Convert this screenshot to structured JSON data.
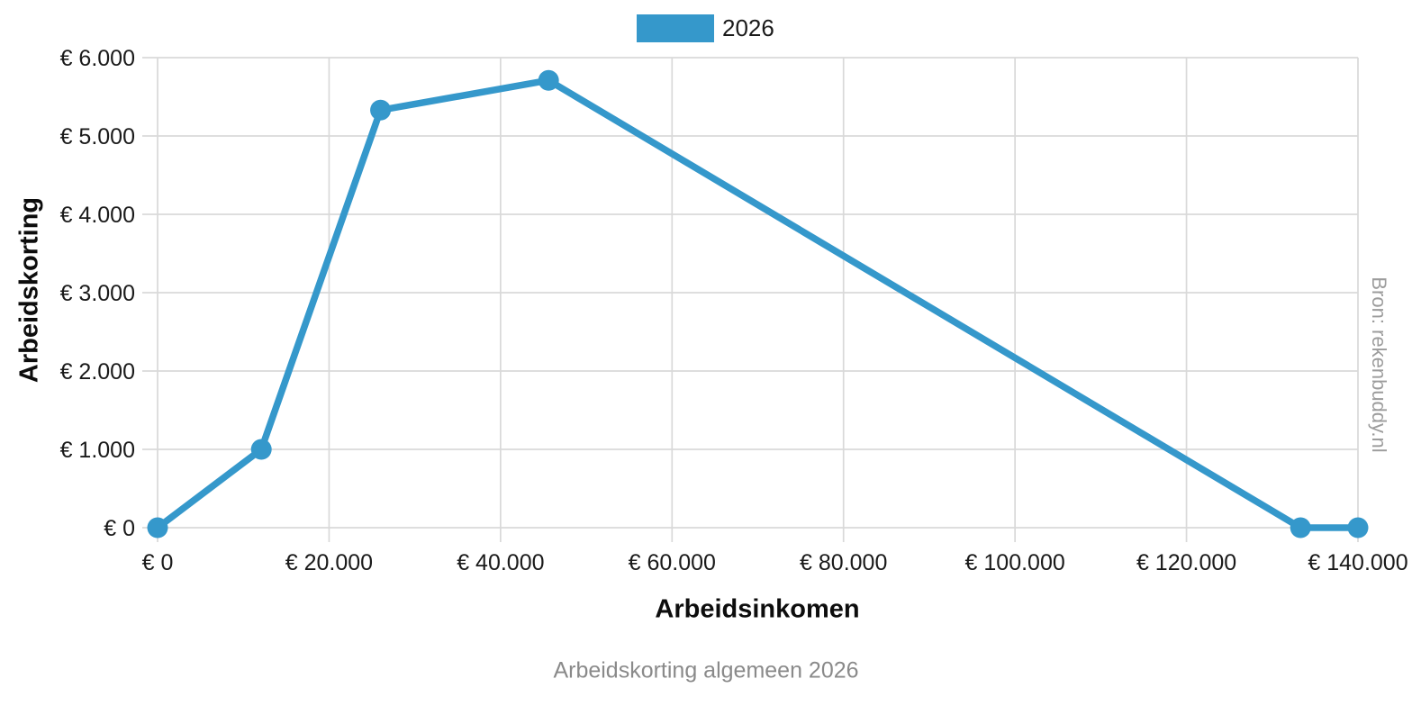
{
  "page": {
    "background": "#ffffff"
  },
  "legend": {
    "items": [
      {
        "label": "2026",
        "color": "#3598cb"
      }
    ]
  },
  "caption": "Arbeidskorting algemeen 2026",
  "source": "Bron: rekenbuddy.nl",
  "colors": {
    "series_blue": "#3598cb",
    "gridline": "#d9d9d9",
    "tick_text": "#1a1a1a",
    "axis_title_text": "#0d0d0d",
    "caption_text": "#8a8a8a",
    "source_text": "#9c9c9c"
  },
  "chart_data": {
    "type": "line",
    "title": "Arbeidskorting algemeen 2026",
    "xlabel": "Arbeidsinkomen",
    "ylabel": "Arbeidskorting",
    "xlim": [
      0,
      140000
    ],
    "ylim": [
      0,
      6000
    ],
    "grid": true,
    "legend_position": "top-center",
    "series": [
      {
        "name": "2026",
        "color": "#3598cb",
        "points": [
          {
            "x": 0,
            "y": 0
          },
          {
            "x": 12100,
            "y": 1000
          },
          {
            "x": 26000,
            "y": 5330
          },
          {
            "x": 45600,
            "y": 5710
          },
          {
            "x": 133300,
            "y": 0
          },
          {
            "x": 140000,
            "y": 0
          }
        ]
      }
    ],
    "x_ticks": [
      {
        "value": 0,
        "label": "€ 0"
      },
      {
        "value": 20000,
        "label": "€ 20.000"
      },
      {
        "value": 40000,
        "label": "€ 40.000"
      },
      {
        "value": 60000,
        "label": "€ 60.000"
      },
      {
        "value": 80000,
        "label": "€ 80.000"
      },
      {
        "value": 100000,
        "label": "€ 100.000"
      },
      {
        "value": 120000,
        "label": "€ 120.000"
      },
      {
        "value": 140000,
        "label": "€ 140.000"
      }
    ],
    "y_ticks": [
      {
        "value": 0,
        "label": "€ 0"
      },
      {
        "value": 1000,
        "label": "€ 1.000"
      },
      {
        "value": 2000,
        "label": "€ 2.000"
      },
      {
        "value": 3000,
        "label": "€ 3.000"
      },
      {
        "value": 4000,
        "label": "€ 4.000"
      },
      {
        "value": 5000,
        "label": "€ 5.000"
      },
      {
        "value": 6000,
        "label": "€ 6.000"
      }
    ]
  }
}
